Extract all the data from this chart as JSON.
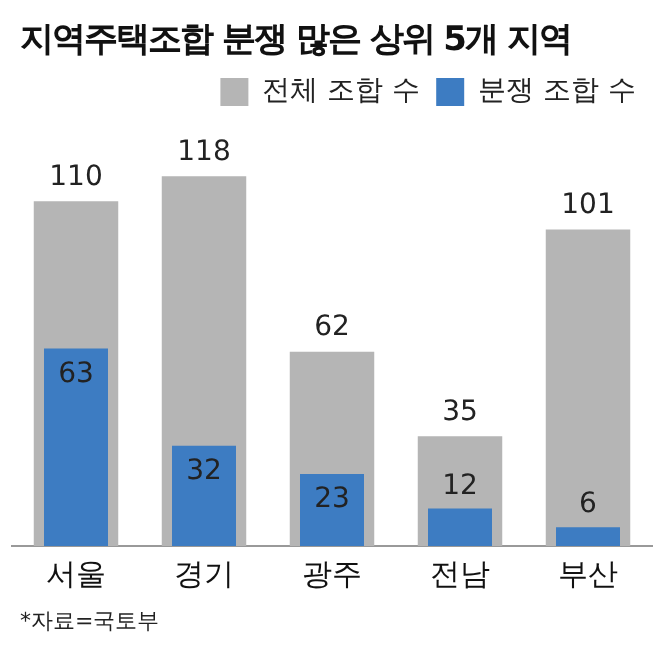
{
  "chart_data": {
    "type": "bar",
    "title": "지역주택조합 분쟁 많은 상위 5개 지역",
    "categories": [
      "서울",
      "경기",
      "광주",
      "전남",
      "부산"
    ],
    "series": [
      {
        "name": "전체 조합 수",
        "color": "#b5b5b5",
        "values": [
          110,
          118,
          62,
          35,
          101
        ]
      },
      {
        "name": "분쟁 조합 수",
        "color": "#3d7cc2",
        "values": [
          63,
          32,
          23,
          12,
          6
        ]
      }
    ],
    "tick_labels": "x",
    "grid": false,
    "legend": "top right",
    "data_labels": true,
    "annotations": [
      "*자료=국토부"
    ]
  }
}
